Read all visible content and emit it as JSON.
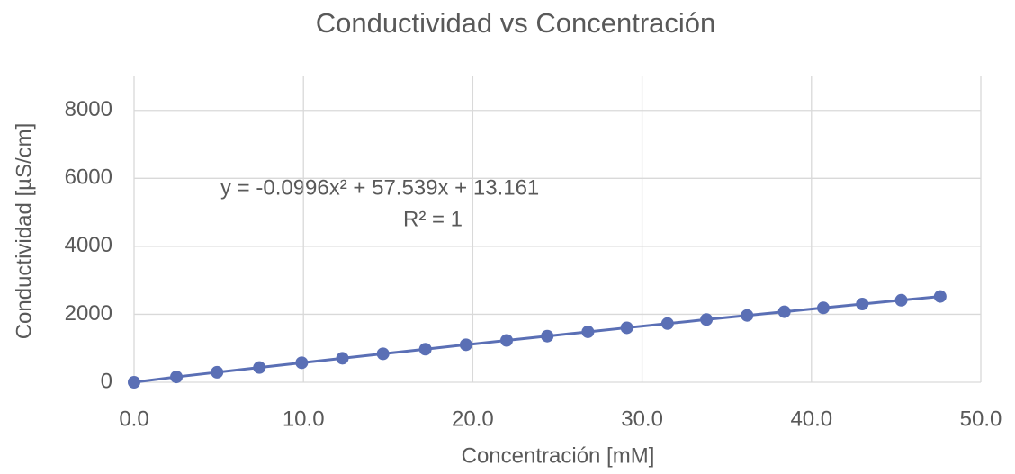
{
  "chart_data": {
    "type": "scatter",
    "title": "Conductividad vs Concentración",
    "x_label": "Concentración [mM]",
    "y_label": "Conductividad [µS/cm]",
    "annotations": [
      "y = -0.0996x² + 57.539x + 13.161",
      "R² = 1"
    ],
    "x": [
      0,
      2.5,
      4.9,
      7.4,
      9.9,
      12.3,
      14.7,
      17.2,
      19.6,
      22.0,
      24.4,
      26.8,
      29.1,
      31.5,
      33.8,
      36.2,
      38.4,
      40.7,
      43.0,
      45.3,
      47.6
    ],
    "values": [
      0,
      157,
      293,
      433,
      573,
      706,
      837,
      973,
      1103,
      1231,
      1358,
      1483,
      1603,
      1726,
      1845,
      1966,
      2076,
      2190,
      2303,
      2415,
      2525
    ],
    "color": "#5a6fb5",
    "xlim": [
      0,
      50
    ],
    "xticks": [
      {
        "value": 0,
        "label": "0.0"
      },
      {
        "value": 10,
        "label": "10.0"
      },
      {
        "value": 20,
        "label": "20.0"
      },
      {
        "value": 30,
        "label": "30.0"
      },
      {
        "value": 40,
        "label": "40.0"
      },
      {
        "value": 50,
        "label": "50.0"
      }
    ],
    "ylim": [
      0,
      9000
    ],
    "yticks": [
      0,
      2000,
      4000,
      6000,
      8000
    ],
    "grid": true
  }
}
